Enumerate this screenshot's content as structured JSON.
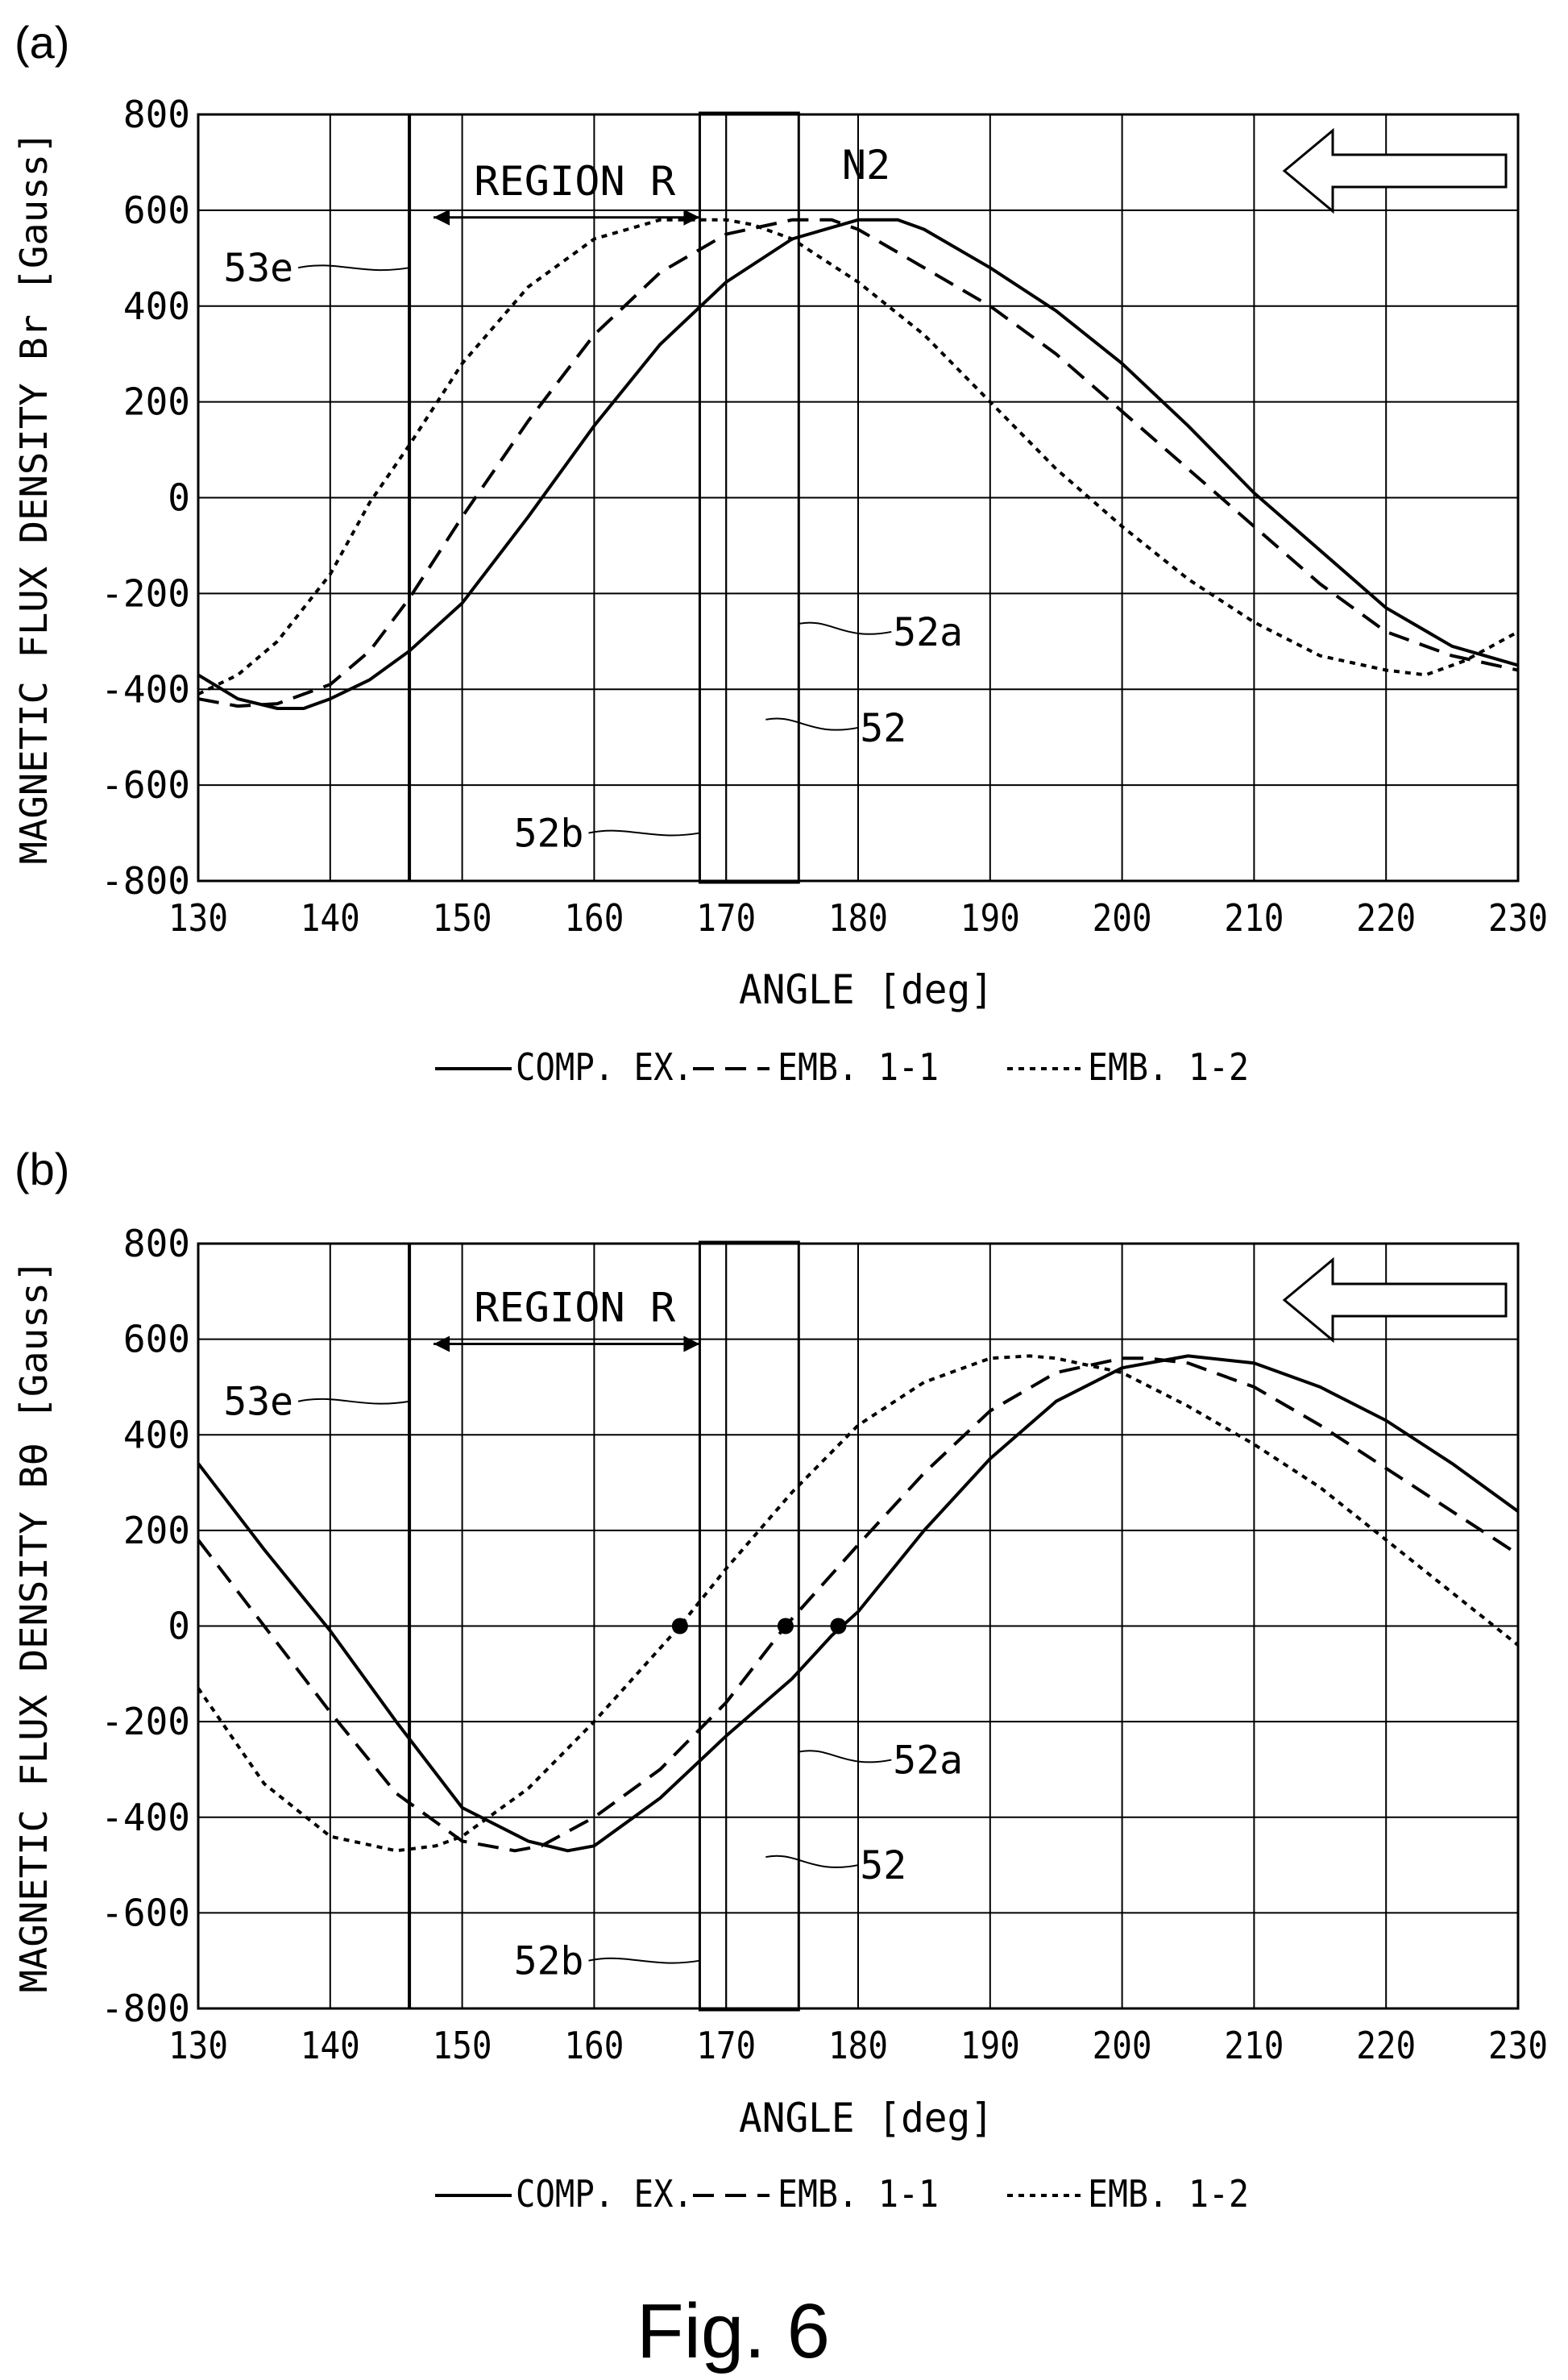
{
  "figure_caption": "Fig. 6",
  "chart_data": [
    {
      "panel": "(a)",
      "type": "line",
      "xlabel": "ANGLE [deg]",
      "ylabel": "MAGNETIC FLUX DENSITY Br [Gauss]",
      "xlim": [
        130,
        230
      ],
      "ylim": [
        -800,
        800
      ],
      "xticks": [
        "130",
        "140",
        "150",
        "160",
        "170",
        "180",
        "190",
        "200",
        "210",
        "220",
        "230"
      ],
      "yticks": [
        "800",
        "600",
        "400",
        "200",
        "0",
        "-200",
        "-400",
        "-600",
        "-800"
      ],
      "grid": true,
      "region_label": "REGION R",
      "region_range": [
        146,
        168
      ],
      "vertical_line_53e": 146,
      "box_52": [
        168,
        175.5
      ],
      "line_52a": 170,
      "peak_label": "N2",
      "peak_label_x": 180,
      "annotations": [
        {
          "text": "53e",
          "target_x": 146,
          "y": 480
        },
        {
          "text": "52a",
          "target_x": 175.5,
          "y": -280
        },
        {
          "text": "52",
          "target_x": 173,
          "y": -480
        },
        {
          "text": "52b",
          "target_x": 168,
          "y": -700
        }
      ],
      "arrow_direction": "left",
      "legend": [
        "COMP. EX.",
        "EMB. 1-1",
        "EMB. 1-2"
      ],
      "series": [
        {
          "name": "COMP. EX.",
          "style": "solid",
          "x": [
            130,
            133,
            136,
            138,
            140,
            143,
            146,
            150,
            155,
            160,
            165,
            170,
            175,
            180,
            183,
            185,
            190,
            195,
            200,
            205,
            210,
            215,
            220,
            225,
            230
          ],
          "y": [
            -370,
            -420,
            -440,
            -440,
            -420,
            -380,
            -320,
            -220,
            -40,
            150,
            320,
            450,
            540,
            580,
            580,
            560,
            480,
            390,
            280,
            150,
            10,
            -110,
            -230,
            -310,
            -350
          ]
        },
        {
          "name": "EMB. 1-1",
          "style": "dashed",
          "x": [
            130,
            133,
            136,
            140,
            143,
            146,
            150,
            155,
            160,
            165,
            170,
            175,
            178,
            180,
            185,
            190,
            195,
            200,
            205,
            210,
            215,
            220,
            225,
            230
          ],
          "y": [
            -420,
            -435,
            -430,
            -390,
            -320,
            -210,
            -40,
            160,
            340,
            470,
            550,
            580,
            580,
            560,
            480,
            400,
            300,
            180,
            60,
            -60,
            -180,
            -280,
            -330,
            -360
          ]
        },
        {
          "name": "EMB. 1-2",
          "style": "dotted",
          "x": [
            130,
            133,
            136,
            140,
            143,
            146,
            150,
            155,
            160,
            165,
            168,
            170,
            172,
            175,
            180,
            185,
            190,
            195,
            200,
            205,
            210,
            215,
            220,
            223,
            226,
            230
          ],
          "y": [
            -410,
            -370,
            -300,
            -160,
            -10,
            110,
            280,
            440,
            540,
            580,
            580,
            580,
            570,
            540,
            450,
            340,
            200,
            60,
            -60,
            -170,
            -260,
            -330,
            -360,
            -370,
            -340,
            -280
          ]
        }
      ]
    },
    {
      "panel": "(b)",
      "type": "line",
      "xlabel": "ANGLE [deg]",
      "ylabel": "MAGNETIC FLUX DENSITY Bθ [Gauss]",
      "xlim": [
        130,
        230
      ],
      "ylim": [
        -800,
        800
      ],
      "xticks": [
        "130",
        "140",
        "150",
        "160",
        "170",
        "180",
        "190",
        "200",
        "210",
        "220",
        "230"
      ],
      "yticks": [
        "800",
        "600",
        "400",
        "200",
        "0",
        "-200",
        "-400",
        "-600",
        "-800"
      ],
      "grid": true,
      "region_label": "REGION R",
      "region_range": [
        146,
        168
      ],
      "vertical_line_53e": 146,
      "box_52": [
        168,
        175.5
      ],
      "line_52a": 170,
      "annotations": [
        {
          "text": "53e",
          "target_x": 146,
          "y": 470
        },
        {
          "text": "52a",
          "target_x": 175.5,
          "y": -280
        },
        {
          "text": "52",
          "target_x": 173,
          "y": -500
        },
        {
          "text": "52b",
          "target_x": 168,
          "y": -700
        }
      ],
      "zero_crossings": [
        166.5,
        174.5,
        178.5
      ],
      "arrow_direction": "left",
      "legend": [
        "COMP. EX.",
        "EMB. 1-1",
        "EMB. 1-2"
      ],
      "series": [
        {
          "name": "COMP. EX.",
          "style": "solid",
          "x": [
            130,
            135,
            140,
            145,
            150,
            155,
            158,
            160,
            165,
            170,
            175,
            178,
            180,
            185,
            190,
            195,
            200,
            205,
            210,
            215,
            220,
            225,
            230
          ],
          "y": [
            340,
            160,
            -10,
            -200,
            -380,
            -450,
            -470,
            -460,
            -360,
            -230,
            -110,
            -20,
            30,
            200,
            350,
            470,
            540,
            565,
            550,
            500,
            430,
            340,
            240
          ]
        },
        {
          "name": "EMB. 1-1",
          "style": "dashed",
          "x": [
            130,
            135,
            140,
            145,
            150,
            154,
            156,
            160,
            165,
            170,
            174.5,
            180,
            185,
            190,
            195,
            200,
            202,
            205,
            210,
            215,
            220,
            225,
            230
          ],
          "y": [
            180,
            0,
            -180,
            -350,
            -450,
            -470,
            -460,
            -400,
            -300,
            -160,
            0,
            170,
            320,
            450,
            530,
            560,
            560,
            550,
            500,
            420,
            330,
            240,
            150
          ]
        },
        {
          "name": "EMB. 1-2",
          "style": "dotted",
          "x": [
            130,
            135,
            140,
            145,
            148,
            150,
            155,
            160,
            166.5,
            170,
            175,
            180,
            185,
            190,
            193,
            195,
            200,
            205,
            210,
            215,
            220,
            225,
            230
          ],
          "y": [
            -130,
            -330,
            -440,
            -470,
            -460,
            -440,
            -340,
            -200,
            0,
            120,
            280,
            420,
            510,
            560,
            565,
            560,
            530,
            460,
            380,
            290,
            180,
            70,
            -40
          ]
        }
      ]
    }
  ]
}
